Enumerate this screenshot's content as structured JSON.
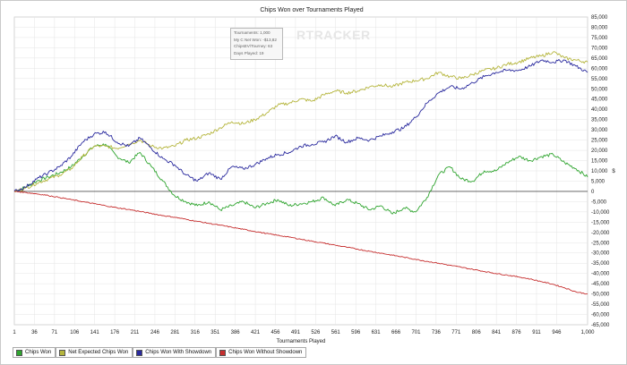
{
  "chart_data": {
    "type": "line",
    "title": "Chips Won over Tournaments Played",
    "xlabel": "Tournaments Played",
    "ylabel": "$",
    "xlim": [
      1,
      1000
    ],
    "ylim": [
      -65000,
      85000
    ],
    "x_ticks": [
      "1",
      "36",
      "71",
      "106",
      "141",
      "176",
      "211",
      "246",
      "281",
      "316",
      "351",
      "386",
      "421",
      "456",
      "491",
      "526",
      "561",
      "596",
      "631",
      "666",
      "701",
      "736",
      "771",
      "806",
      "841",
      "876",
      "911",
      "946",
      "1,000"
    ],
    "y_ticks": [
      "85,000",
      "80,000",
      "75,000",
      "70,000",
      "65,000",
      "60,000",
      "55,000",
      "50,000",
      "45,000",
      "40,000",
      "35,000",
      "30,000",
      "25,000",
      "20,000",
      "15,000",
      "10,000",
      "5,000",
      "0",
      "-5,000",
      "-10,000",
      "-15,000",
      "-20,000",
      "-25,000",
      "-30,000",
      "-35,000",
      "-40,000",
      "-45,000",
      "-50,000",
      "-55,000",
      "-60,000",
      "-65,000"
    ],
    "grid": true,
    "legend_position": "bottom-left",
    "series": [
      {
        "name": "Chips Won",
        "color": "#2fa52f",
        "x": [
          1,
          20,
          40,
          60,
          80,
          100,
          120,
          140,
          160,
          180,
          200,
          220,
          240,
          260,
          280,
          300,
          320,
          340,
          360,
          380,
          400,
          420,
          440,
          460,
          480,
          500,
          520,
          540,
          560,
          580,
          600,
          620,
          640,
          660,
          680,
          700,
          720,
          740,
          760,
          780,
          800,
          820,
          840,
          860,
          880,
          900,
          920,
          940,
          960,
          980,
          1000
        ],
        "values": [
          0,
          2000,
          5000,
          7000,
          9000,
          12000,
          17000,
          22000,
          23000,
          17000,
          14000,
          19000,
          12000,
          5000,
          -2000,
          -5000,
          -7000,
          -5000,
          -9000,
          -7000,
          -5000,
          -8000,
          -6000,
          -4000,
          -7000,
          -6000,
          -5000,
          -3000,
          -7000,
          -4000,
          -6000,
          -9000,
          -7000,
          -11000,
          -8000,
          -10000,
          -3000,
          8000,
          12000,
          6000,
          5000,
          10000,
          10000,
          14000,
          17000,
          15000,
          17000,
          18000,
          14000,
          11000,
          7000
        ]
      },
      {
        "name": "Net Expected Chips Won",
        "color": "#b5b53c",
        "x": [
          1,
          20,
          40,
          60,
          80,
          100,
          120,
          140,
          160,
          180,
          200,
          220,
          240,
          260,
          280,
          300,
          320,
          340,
          360,
          380,
          400,
          420,
          440,
          460,
          480,
          500,
          520,
          540,
          560,
          580,
          600,
          620,
          640,
          660,
          680,
          700,
          720,
          740,
          760,
          780,
          800,
          820,
          840,
          860,
          880,
          900,
          920,
          940,
          960,
          980,
          1000
        ],
        "values": [
          0,
          1500,
          4000,
          6000,
          8000,
          11000,
          17000,
          22000,
          22000,
          21000,
          23000,
          25000,
          22000,
          21000,
          22000,
          25000,
          26000,
          28000,
          31000,
          34000,
          33000,
          35000,
          38000,
          42000,
          43000,
          45000,
          44000,
          47000,
          49000,
          48000,
          49000,
          51000,
          52000,
          51000,
          53000,
          54000,
          55000,
          58000,
          56000,
          55000,
          57000,
          59000,
          60000,
          62000,
          63000,
          65000,
          66000,
          68000,
          65000,
          64000,
          63000
        ]
      },
      {
        "name": "Chips Won With Showdown",
        "color": "#2a2a9e",
        "x": [
          1,
          20,
          40,
          60,
          80,
          100,
          120,
          140,
          160,
          180,
          200,
          220,
          240,
          260,
          280,
          300,
          320,
          340,
          360,
          380,
          400,
          420,
          440,
          460,
          480,
          500,
          520,
          540,
          560,
          580,
          600,
          620,
          640,
          660,
          680,
          700,
          720,
          740,
          760,
          780,
          800,
          820,
          840,
          860,
          880,
          900,
          920,
          940,
          960,
          980,
          1000
        ],
        "values": [
          0,
          2000,
          6000,
          9000,
          12000,
          17000,
          24000,
          28000,
          29000,
          24000,
          22000,
          26000,
          21000,
          16000,
          13000,
          8000,
          5000,
          9000,
          6000,
          12000,
          11000,
          13000,
          16000,
          18000,
          19000,
          22000,
          23000,
          24000,
          27000,
          24000,
          26000,
          25000,
          27000,
          29000,
          31000,
          36000,
          43000,
          48000,
          51000,
          50000,
          53000,
          56000,
          58000,
          59000,
          59000,
          61000,
          64000,
          63000,
          64000,
          61000,
          58000
        ]
      },
      {
        "name": "Chips Won Without Showdown",
        "color": "#c62e2e",
        "x": [
          1,
          20,
          40,
          60,
          80,
          100,
          120,
          140,
          160,
          180,
          200,
          220,
          240,
          260,
          280,
          300,
          320,
          340,
          360,
          380,
          400,
          420,
          440,
          460,
          480,
          500,
          520,
          540,
          560,
          580,
          600,
          620,
          640,
          660,
          680,
          700,
          720,
          740,
          760,
          780,
          800,
          820,
          840,
          860,
          880,
          900,
          920,
          940,
          960,
          980,
          1000
        ],
        "values": [
          0,
          -500,
          -1200,
          -2000,
          -3000,
          -4000,
          -5000,
          -6000,
          -7000,
          -8000,
          -8800,
          -9800,
          -10800,
          -11800,
          -12600,
          -13600,
          -14600,
          -15600,
          -16500,
          -17500,
          -18500,
          -19500,
          -20500,
          -21400,
          -22300,
          -23300,
          -24300,
          -25200,
          -26200,
          -27200,
          -28200,
          -29200,
          -30100,
          -31100,
          -32100,
          -33100,
          -34100,
          -35000,
          -36000,
          -37000,
          -38000,
          -39000,
          -40000,
          -40800,
          -41700,
          -42700,
          -44000,
          -45300,
          -47000,
          -49000,
          -50000
        ]
      }
    ]
  },
  "tooltip": {
    "lines": [
      "Tournaments: 1,000",
      "My C Net Won: -$13,82",
      "ChipsEV/Tourney: 63",
      "Days Played: 19"
    ]
  },
  "watermark": "RTRACKER",
  "legend": [
    {
      "label": "Chips Won",
      "color": "#2fa52f"
    },
    {
      "label": "Net Expected Chips Won",
      "color": "#b5b53c"
    },
    {
      "label": "Chips Won With Showdown",
      "color": "#2a2a9e"
    },
    {
      "label": "Chips Won Without Showdown",
      "color": "#c62e2e"
    }
  ]
}
